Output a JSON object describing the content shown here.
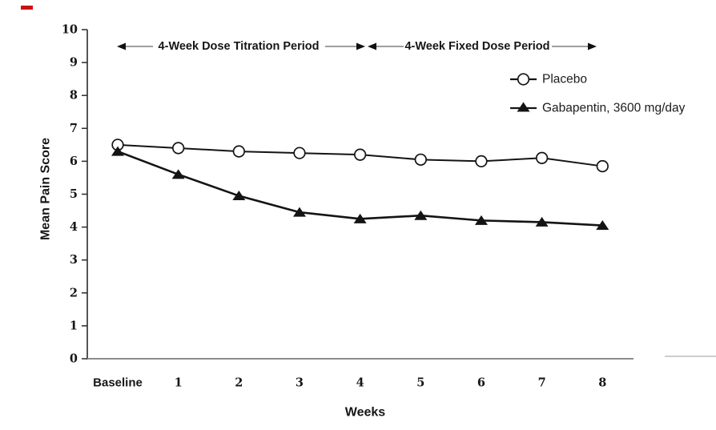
{
  "figure": {
    "ylabel": "Mean Pain Score",
    "xlabel": "Weeks"
  },
  "chart_data": {
    "type": "line",
    "categories": [
      "Baseline",
      "1",
      "2",
      "3",
      "4",
      "5",
      "6",
      "7",
      "8"
    ],
    "series": [
      {
        "name": "Placebo",
        "marker": "open-circle",
        "color": "#141414",
        "values": [
          6.5,
          6.4,
          6.3,
          6.25,
          6.2,
          6.05,
          6.0,
          6.1,
          5.85
        ]
      },
      {
        "name": "Gabapentin, 3600 mg/day",
        "marker": "filled-triangle",
        "color": "#141414",
        "values": [
          6.3,
          5.6,
          4.95,
          4.45,
          4.25,
          4.35,
          4.2,
          4.15,
          4.05
        ]
      }
    ],
    "title": "",
    "xlabel": "Weeks",
    "ylabel": "Mean Pain Score",
    "ylim": [
      0,
      10
    ],
    "yticks": [
      0,
      1,
      2,
      3,
      4,
      5,
      6,
      7,
      8,
      9,
      10
    ],
    "grid": false,
    "legend_position": "upper-right",
    "annotations": [
      {
        "text": "4-Week Dose Titration Period",
        "span_categories": [
          "Baseline",
          "4"
        ]
      },
      {
        "text": "4-Week Fixed Dose Period",
        "span_categories": [
          "4",
          "8"
        ]
      }
    ]
  },
  "colors": {
    "series": "#141414",
    "y_axis": "#2a2a2a",
    "x_axis": "#8c8c8c",
    "x_axis_faint": "#bdbdbd",
    "annotation_line": "#666666",
    "annotation_head": "#111111",
    "red_mark": "#cc1111",
    "text": "#161616"
  }
}
